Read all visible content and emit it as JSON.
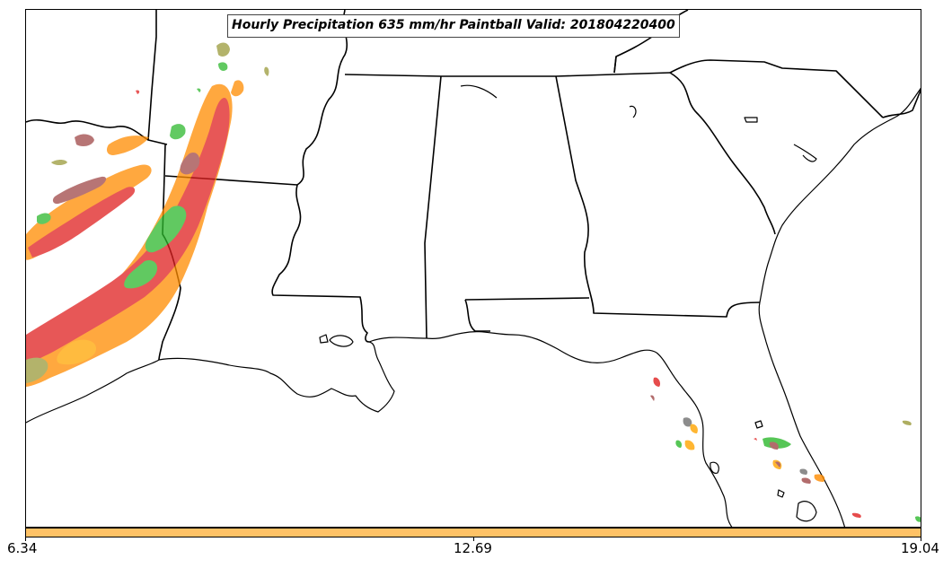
{
  "title": "Hourly Precipitation 635 mm/hr Paintball Valid: 201804220400",
  "colors": {
    "land_outline": "#000000",
    "background": "#ffffff",
    "colorbar_fill": "#ffc266",
    "member_colors": [
      "#e02020",
      "#ff8c00",
      "#ffa500",
      "#2db82d",
      "#a04848",
      "#9a9a3a",
      "#707070"
    ]
  },
  "colorbar": {
    "min_label": "6.34",
    "mid_label": "12.69",
    "max_label": "19.04"
  },
  "map": {
    "region": "Southeastern United States",
    "features": [
      "state-boundaries",
      "coastlines",
      "paintball-precipitation-blobs"
    ]
  }
}
